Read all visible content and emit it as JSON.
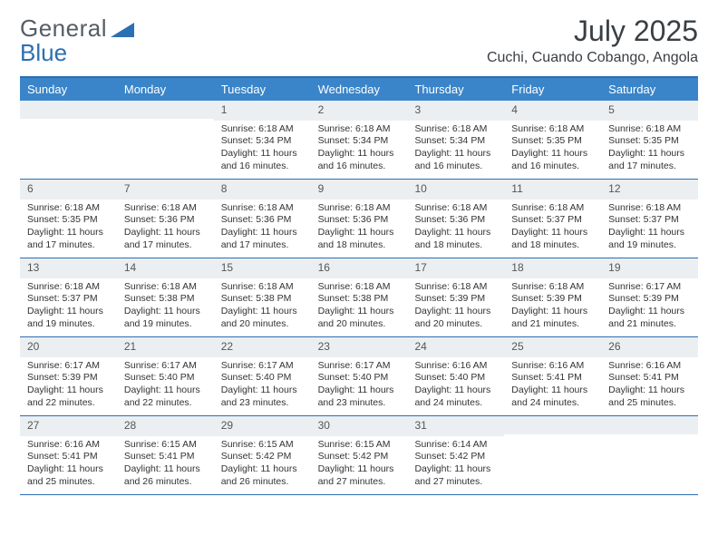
{
  "logo": {
    "part1": "General",
    "part2": "Blue"
  },
  "title": "July 2025",
  "location": "Cuchi, Cuando Cobango, Angola",
  "colors": {
    "header_bg": "#3a85c9",
    "rule": "#2c6fb2",
    "daynum_bg": "#eceff1"
  },
  "day_headers": [
    "Sunday",
    "Monday",
    "Tuesday",
    "Wednesday",
    "Thursday",
    "Friday",
    "Saturday"
  ],
  "weeks": [
    [
      null,
      null,
      {
        "n": "1",
        "sr": "Sunrise: 6:18 AM",
        "ss": "Sunset: 5:34 PM",
        "d1": "Daylight: 11 hours",
        "d2": "and 16 minutes."
      },
      {
        "n": "2",
        "sr": "Sunrise: 6:18 AM",
        "ss": "Sunset: 5:34 PM",
        "d1": "Daylight: 11 hours",
        "d2": "and 16 minutes."
      },
      {
        "n": "3",
        "sr": "Sunrise: 6:18 AM",
        "ss": "Sunset: 5:34 PM",
        "d1": "Daylight: 11 hours",
        "d2": "and 16 minutes."
      },
      {
        "n": "4",
        "sr": "Sunrise: 6:18 AM",
        "ss": "Sunset: 5:35 PM",
        "d1": "Daylight: 11 hours",
        "d2": "and 16 minutes."
      },
      {
        "n": "5",
        "sr": "Sunrise: 6:18 AM",
        "ss": "Sunset: 5:35 PM",
        "d1": "Daylight: 11 hours",
        "d2": "and 17 minutes."
      }
    ],
    [
      {
        "n": "6",
        "sr": "Sunrise: 6:18 AM",
        "ss": "Sunset: 5:35 PM",
        "d1": "Daylight: 11 hours",
        "d2": "and 17 minutes."
      },
      {
        "n": "7",
        "sr": "Sunrise: 6:18 AM",
        "ss": "Sunset: 5:36 PM",
        "d1": "Daylight: 11 hours",
        "d2": "and 17 minutes."
      },
      {
        "n": "8",
        "sr": "Sunrise: 6:18 AM",
        "ss": "Sunset: 5:36 PM",
        "d1": "Daylight: 11 hours",
        "d2": "and 17 minutes."
      },
      {
        "n": "9",
        "sr": "Sunrise: 6:18 AM",
        "ss": "Sunset: 5:36 PM",
        "d1": "Daylight: 11 hours",
        "d2": "and 18 minutes."
      },
      {
        "n": "10",
        "sr": "Sunrise: 6:18 AM",
        "ss": "Sunset: 5:36 PM",
        "d1": "Daylight: 11 hours",
        "d2": "and 18 minutes."
      },
      {
        "n": "11",
        "sr": "Sunrise: 6:18 AM",
        "ss": "Sunset: 5:37 PM",
        "d1": "Daylight: 11 hours",
        "d2": "and 18 minutes."
      },
      {
        "n": "12",
        "sr": "Sunrise: 6:18 AM",
        "ss": "Sunset: 5:37 PM",
        "d1": "Daylight: 11 hours",
        "d2": "and 19 minutes."
      }
    ],
    [
      {
        "n": "13",
        "sr": "Sunrise: 6:18 AM",
        "ss": "Sunset: 5:37 PM",
        "d1": "Daylight: 11 hours",
        "d2": "and 19 minutes."
      },
      {
        "n": "14",
        "sr": "Sunrise: 6:18 AM",
        "ss": "Sunset: 5:38 PM",
        "d1": "Daylight: 11 hours",
        "d2": "and 19 minutes."
      },
      {
        "n": "15",
        "sr": "Sunrise: 6:18 AM",
        "ss": "Sunset: 5:38 PM",
        "d1": "Daylight: 11 hours",
        "d2": "and 20 minutes."
      },
      {
        "n": "16",
        "sr": "Sunrise: 6:18 AM",
        "ss": "Sunset: 5:38 PM",
        "d1": "Daylight: 11 hours",
        "d2": "and 20 minutes."
      },
      {
        "n": "17",
        "sr": "Sunrise: 6:18 AM",
        "ss": "Sunset: 5:39 PM",
        "d1": "Daylight: 11 hours",
        "d2": "and 20 minutes."
      },
      {
        "n": "18",
        "sr": "Sunrise: 6:18 AM",
        "ss": "Sunset: 5:39 PM",
        "d1": "Daylight: 11 hours",
        "d2": "and 21 minutes."
      },
      {
        "n": "19",
        "sr": "Sunrise: 6:17 AM",
        "ss": "Sunset: 5:39 PM",
        "d1": "Daylight: 11 hours",
        "d2": "and 21 minutes."
      }
    ],
    [
      {
        "n": "20",
        "sr": "Sunrise: 6:17 AM",
        "ss": "Sunset: 5:39 PM",
        "d1": "Daylight: 11 hours",
        "d2": "and 22 minutes."
      },
      {
        "n": "21",
        "sr": "Sunrise: 6:17 AM",
        "ss": "Sunset: 5:40 PM",
        "d1": "Daylight: 11 hours",
        "d2": "and 22 minutes."
      },
      {
        "n": "22",
        "sr": "Sunrise: 6:17 AM",
        "ss": "Sunset: 5:40 PM",
        "d1": "Daylight: 11 hours",
        "d2": "and 23 minutes."
      },
      {
        "n": "23",
        "sr": "Sunrise: 6:17 AM",
        "ss": "Sunset: 5:40 PM",
        "d1": "Daylight: 11 hours",
        "d2": "and 23 minutes."
      },
      {
        "n": "24",
        "sr": "Sunrise: 6:16 AM",
        "ss": "Sunset: 5:40 PM",
        "d1": "Daylight: 11 hours",
        "d2": "and 24 minutes."
      },
      {
        "n": "25",
        "sr": "Sunrise: 6:16 AM",
        "ss": "Sunset: 5:41 PM",
        "d1": "Daylight: 11 hours",
        "d2": "and 24 minutes."
      },
      {
        "n": "26",
        "sr": "Sunrise: 6:16 AM",
        "ss": "Sunset: 5:41 PM",
        "d1": "Daylight: 11 hours",
        "d2": "and 25 minutes."
      }
    ],
    [
      {
        "n": "27",
        "sr": "Sunrise: 6:16 AM",
        "ss": "Sunset: 5:41 PM",
        "d1": "Daylight: 11 hours",
        "d2": "and 25 minutes."
      },
      {
        "n": "28",
        "sr": "Sunrise: 6:15 AM",
        "ss": "Sunset: 5:41 PM",
        "d1": "Daylight: 11 hours",
        "d2": "and 26 minutes."
      },
      {
        "n": "29",
        "sr": "Sunrise: 6:15 AM",
        "ss": "Sunset: 5:42 PM",
        "d1": "Daylight: 11 hours",
        "d2": "and 26 minutes."
      },
      {
        "n": "30",
        "sr": "Sunrise: 6:15 AM",
        "ss": "Sunset: 5:42 PM",
        "d1": "Daylight: 11 hours",
        "d2": "and 27 minutes."
      },
      {
        "n": "31",
        "sr": "Sunrise: 6:14 AM",
        "ss": "Sunset: 5:42 PM",
        "d1": "Daylight: 11 hours",
        "d2": "and 27 minutes."
      },
      null,
      null
    ]
  ]
}
